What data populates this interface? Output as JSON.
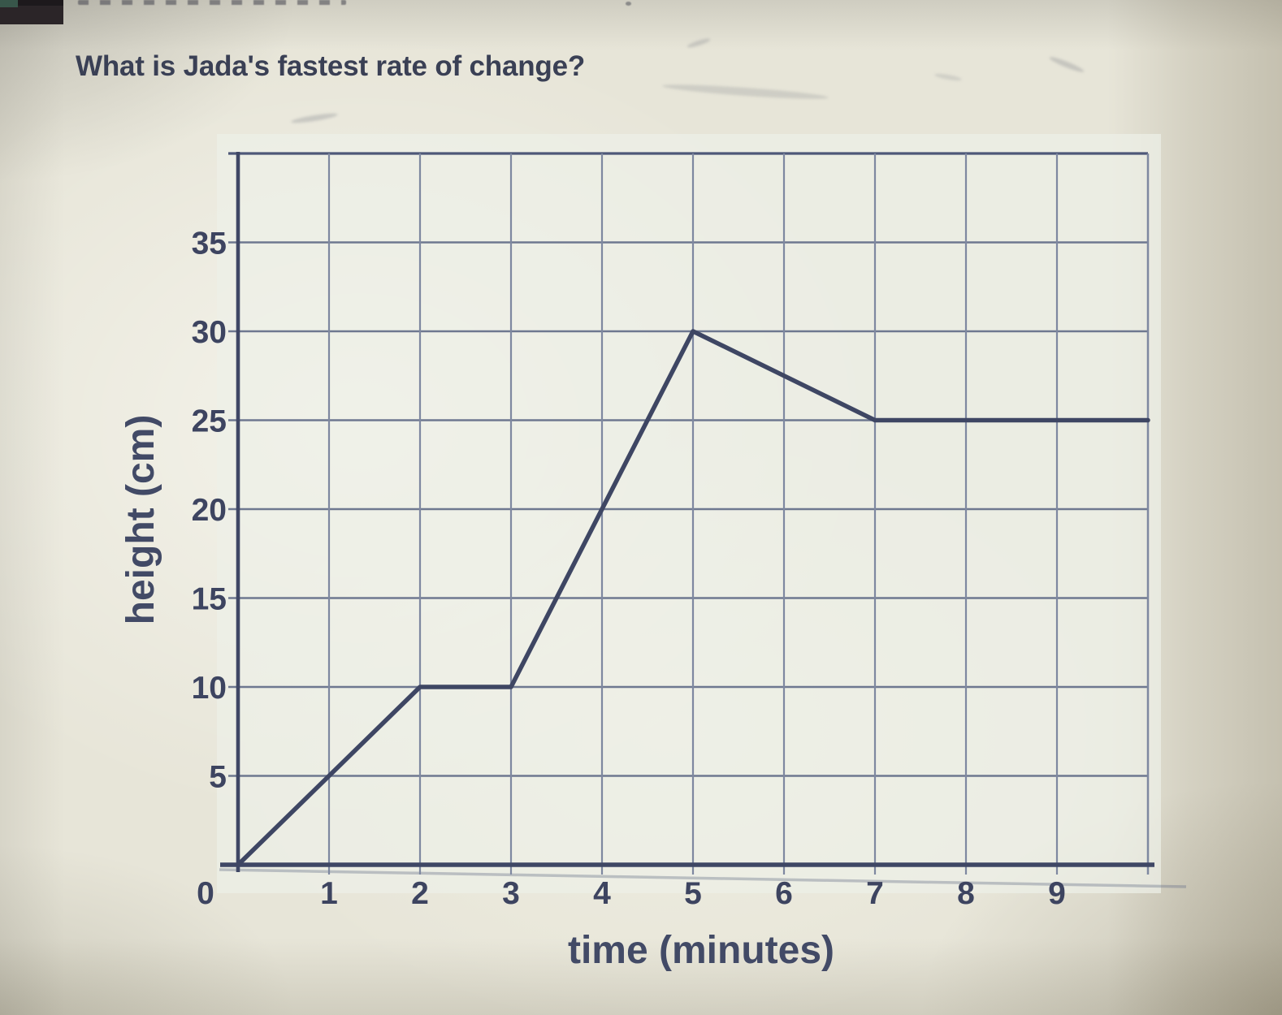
{
  "question": {
    "text": "What is Jada's fastest rate of change?"
  },
  "chart_data": {
    "type": "line",
    "title": "",
    "xlabel": "time (minutes)",
    "ylabel": "height (cm)",
    "xlim": [
      0,
      10
    ],
    "ylim": [
      0,
      40
    ],
    "x_grid_step": 1,
    "y_grid_step": 5,
    "grid": true,
    "x_ticks": [
      "0",
      "1",
      "2",
      "3",
      "4",
      "5",
      "6",
      "7",
      "8",
      "9"
    ],
    "y_ticks": [
      "5",
      "10",
      "15",
      "20",
      "25",
      "30",
      "35"
    ],
    "series": [
      {
        "name": "Jada",
        "points": [
          [
            0,
            0
          ],
          [
            2,
            10
          ],
          [
            3,
            10
          ],
          [
            5,
            30
          ],
          [
            7,
            25
          ],
          [
            10,
            25
          ]
        ]
      }
    ],
    "legend": "none",
    "palette": {
      "line": "#3e4663",
      "axis": "#3f4765",
      "grid_horizontal": "#6e7890",
      "grid_vertical": "#7e88a0",
      "border_top": "#4e5878",
      "tick_text": "#3d4460",
      "plot_background": "#edf0e8",
      "page_background": "#e7e5d8",
      "right_margin_shade": "#d5cfbc",
      "toolbar_fragment": "#2b2528",
      "toolbar_accent": "#38564a"
    }
  }
}
